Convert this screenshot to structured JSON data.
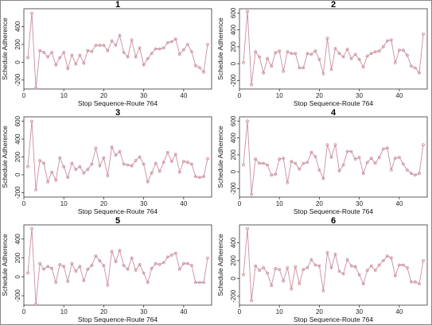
{
  "colors": {
    "series": "#c98f9c",
    "axis": "#333333",
    "frame": "#888888"
  },
  "chart_data": [
    {
      "type": "line",
      "title": "1",
      "xlabel": "Stop Sequence-Route 764",
      "ylabel": "Schedule Adherence",
      "xlim": [
        0,
        47
      ],
      "ylim": [
        -300,
        600
      ],
      "xticks": [
        0,
        10,
        20,
        30,
        40
      ],
      "yticks": [
        -200,
        0,
        200,
        400
      ],
      "x": [
        1,
        2,
        3,
        4,
        5,
        6,
        7,
        8,
        9,
        10,
        11,
        12,
        13,
        14,
        15,
        16,
        17,
        18,
        19,
        20,
        21,
        22,
        23,
        24,
        25,
        26,
        27,
        28,
        29,
        30,
        31,
        32,
        33,
        34,
        35,
        36,
        37,
        38,
        39,
        40,
        41,
        42,
        43,
        44,
        45,
        46
      ],
      "series": [
        {
          "values": [
            50,
            550,
            -290,
            130,
            110,
            60,
            110,
            -30,
            50,
            110,
            -70,
            80,
            -20,
            80,
            -10,
            130,
            120,
            190,
            190,
            190,
            130,
            240,
            190,
            300,
            110,
            60,
            250,
            60,
            160,
            -30,
            40,
            100,
            150,
            150,
            160,
            220,
            230,
            260,
            90,
            140,
            200,
            120,
            -40,
            -60,
            -110,
            200
          ]
        }
      ]
    },
    {
      "type": "line",
      "title": "2",
      "xlabel": "Stop Sequence-Route 764",
      "ylabel": "Schedule Adherence",
      "xlim": [
        0,
        47
      ],
      "ylim": [
        -300,
        650
      ],
      "xticks": [
        0,
        10,
        20,
        30,
        40
      ],
      "yticks": [
        -200,
        0,
        200,
        400,
        600
      ],
      "x": [
        1,
        2,
        3,
        4,
        5,
        6,
        7,
        8,
        9,
        10,
        11,
        12,
        13,
        14,
        15,
        16,
        17,
        18,
        19,
        20,
        21,
        22,
        23,
        24,
        25,
        26,
        27,
        28,
        29,
        30,
        31,
        32,
        33,
        34,
        35,
        36,
        37,
        38,
        39,
        40,
        41,
        42,
        43,
        44,
        45,
        46
      ],
      "series": [
        {
          "values": [
            10,
            620,
            -250,
            140,
            80,
            -110,
            60,
            -30,
            130,
            150,
            -90,
            140,
            120,
            120,
            -50,
            -50,
            120,
            110,
            150,
            50,
            -120,
            300,
            -70,
            180,
            120,
            80,
            170,
            60,
            110,
            50,
            -40,
            90,
            120,
            140,
            150,
            200,
            270,
            280,
            10,
            160,
            160,
            100,
            -30,
            -50,
            -110,
            350
          ]
        }
      ]
    },
    {
      "type": "line",
      "title": "3",
      "xlabel": "Stop Sequence-Route 764",
      "ylabel": "Schedule Adherence",
      "xlim": [
        0,
        47
      ],
      "ylim": [
        -250,
        650
      ],
      "xticks": [
        0,
        10,
        20,
        30,
        40
      ],
      "yticks": [
        -200,
        0,
        200,
        400,
        600
      ],
      "x": [
        1,
        2,
        3,
        4,
        5,
        6,
        7,
        8,
        9,
        10,
        11,
        12,
        13,
        14,
        15,
        16,
        17,
        18,
        19,
        20,
        21,
        22,
        23,
        24,
        25,
        26,
        27,
        28,
        29,
        30,
        31,
        32,
        33,
        34,
        35,
        36,
        37,
        38,
        39,
        40,
        41,
        42,
        43,
        44,
        45,
        46
      ],
      "series": [
        {
          "values": [
            90,
            600,
            -170,
            160,
            130,
            -80,
            30,
            -60,
            190,
            90,
            -30,
            130,
            60,
            90,
            20,
            60,
            120,
            300,
            100,
            190,
            -10,
            310,
            220,
            260,
            120,
            110,
            100,
            160,
            200,
            120,
            -80,
            20,
            130,
            40,
            140,
            250,
            150,
            230,
            30,
            150,
            140,
            120,
            -20,
            -30,
            -20,
            180
          ]
        }
      ]
    },
    {
      "type": "line",
      "title": "4",
      "xlabel": "Stop Sequence-Route 764",
      "ylabel": "Schedule Adherence",
      "xlim": [
        0,
        47
      ],
      "ylim": [
        -300,
        650
      ],
      "xticks": [
        0,
        10,
        20,
        30,
        40
      ],
      "yticks": [
        -200,
        0,
        200,
        400,
        600
      ],
      "x": [
        1,
        2,
        3,
        4,
        5,
        6,
        7,
        8,
        9,
        10,
        11,
        12,
        13,
        14,
        15,
        16,
        17,
        18,
        19,
        20,
        21,
        22,
        23,
        24,
        25,
        26,
        27,
        28,
        29,
        30,
        31,
        32,
        33,
        34,
        35,
        36,
        37,
        38,
        39,
        40,
        41,
        42,
        43,
        44,
        45,
        46
      ],
      "series": [
        {
          "values": [
            80,
            600,
            -270,
            150,
            100,
            100,
            80,
            -40,
            -30,
            150,
            160,
            -130,
            120,
            100,
            30,
            100,
            110,
            230,
            180,
            20,
            -80,
            320,
            170,
            320,
            10,
            80,
            240,
            240,
            150,
            170,
            -20,
            110,
            160,
            100,
            170,
            270,
            280,
            20,
            160,
            170,
            90,
            20,
            -20,
            -40,
            -20,
            320
          ]
        }
      ]
    },
    {
      "type": "line",
      "title": "5",
      "xlabel": "Stop Sequence-Route 764",
      "ylabel": "Schedule Adherence",
      "xlim": [
        0,
        47
      ],
      "ylim": [
        -300,
        550
      ],
      "xticks": [
        0,
        10,
        20,
        30,
        40
      ],
      "yticks": [
        -200,
        0,
        200,
        400
      ],
      "x": [
        1,
        2,
        3,
        4,
        5,
        6,
        7,
        8,
        9,
        10,
        11,
        12,
        13,
        14,
        15,
        16,
        17,
        18,
        19,
        20,
        21,
        22,
        23,
        24,
        25,
        26,
        27,
        28,
        29,
        30,
        31,
        32,
        33,
        34,
        35,
        36,
        37,
        38,
        39,
        40,
        41,
        42,
        43,
        44,
        45,
        46
      ],
      "series": [
        {
          "values": [
            40,
            510,
            -290,
            140,
            80,
            110,
            90,
            -60,
            130,
            110,
            -50,
            140,
            60,
            110,
            -40,
            80,
            120,
            220,
            170,
            120,
            -90,
            270,
            160,
            280,
            120,
            80,
            200,
            70,
            130,
            40,
            -60,
            90,
            140,
            130,
            150,
            210,
            230,
            250,
            80,
            140,
            140,
            120,
            -60,
            -60,
            -60,
            200
          ]
        }
      ]
    },
    {
      "type": "line",
      "title": "6",
      "xlabel": "Stop Sequence-Route 764",
      "ylabel": "Schedule Adherence",
      "xlim": [
        0,
        47
      ],
      "ylim": [
        -300,
        600
      ],
      "xticks": [
        0,
        10,
        20,
        30,
        40
      ],
      "yticks": [
        -200,
        0,
        200,
        400
      ],
      "x": [
        1,
        2,
        3,
        4,
        5,
        6,
        7,
        8,
        9,
        10,
        11,
        12,
        13,
        14,
        15,
        16,
        17,
        18,
        19,
        20,
        21,
        22,
        23,
        24,
        25,
        26,
        27,
        28,
        29,
        30,
        31,
        32,
        33,
        34,
        35,
        36,
        37,
        38,
        39,
        40,
        41,
        42,
        43,
        44,
        45,
        46
      ],
      "series": [
        {
          "values": [
            40,
            560,
            -250,
            140,
            90,
            120,
            60,
            -80,
            110,
            100,
            -30,
            120,
            -120,
            130,
            -60,
            100,
            120,
            210,
            150,
            140,
            -140,
            290,
            120,
            270,
            80,
            50,
            210,
            140,
            130,
            40,
            -60,
            90,
            140,
            90,
            150,
            200,
            250,
            230,
            30,
            150,
            150,
            120,
            -40,
            -40,
            -60,
            200
          ]
        }
      ]
    }
  ]
}
